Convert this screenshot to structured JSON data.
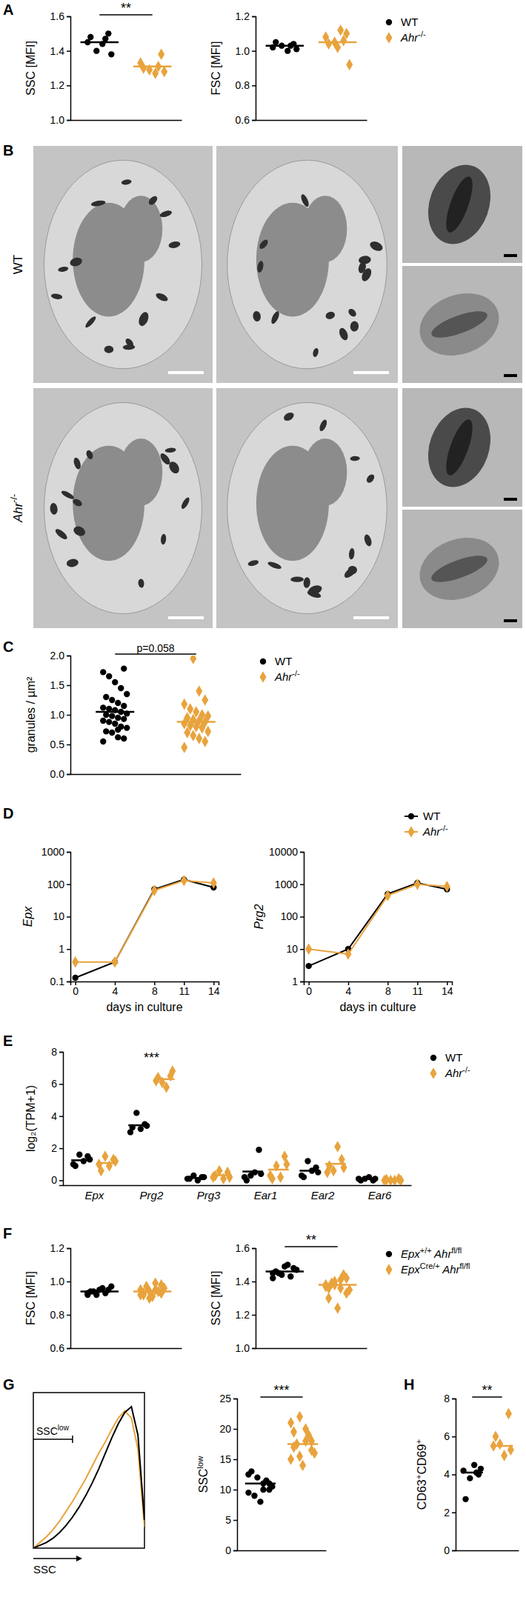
{
  "chart_data": [
    {
      "panel": "A",
      "type": "dot",
      "ylabel": "SSC [MFI]",
      "tick_labels": "y",
      "ylim": [
        1.0,
        1.6
      ],
      "yticks": [
        {
          "value": 1.0,
          "label": "1.0"
        },
        1.2,
        1.4,
        1.6
      ],
      "series": [
        {
          "name": "WT",
          "color": "#000000",
          "marker": "circle",
          "values": [
            1.45,
            1.5,
            1.44,
            1.4,
            1.48,
            1.38,
            1.47
          ],
          "mean": 1.45
        },
        {
          "name": "Ahr-/-",
          "color": "#e8a33d",
          "marker": "diamond",
          "values": [
            1.33,
            1.38,
            1.27,
            1.29,
            1.3,
            1.28,
            1.31
          ],
          "mean": 1.31
        }
      ],
      "annotations": [
        {
          "text": "**"
        }
      ]
    },
    {
      "type": "dot",
      "ylabel": "FSC [MFI]",
      "tick_labels": "y",
      "legend": "right",
      "ylim": [
        0.6,
        1.2
      ],
      "yticks": [
        0.6,
        0.8,
        {
          "value": 1.0,
          "label": "1.0"
        },
        1.2
      ],
      "series": [
        {
          "name": "WT",
          "color": "#000000",
          "marker": "circle",
          "values": [
            1.02,
            1.04,
            1.0,
            1.03,
            1.05,
            1.01,
            1.03
          ],
          "mean": 1.03
        },
        {
          "name": "Ahr-/-",
          "color": "#e8a33d",
          "marker": "diamond",
          "values": [
            1.08,
            1.1,
            1.12,
            1.05,
            1.04,
            0.92,
            1.06,
            1.02
          ],
          "mean": 1.05
        }
      ]
    },
    {
      "panel": "C",
      "type": "dot",
      "ylabel": "granules / µm²",
      "tick_labels": "y",
      "legend": "right",
      "ylim": [
        0.0,
        2.0
      ],
      "yticks": [
        {
          "value": 0.0,
          "label": "0.0"
        },
        0.5,
        {
          "value": 1.0,
          "label": "1.0"
        },
        1.5,
        {
          "value": 2.0,
          "label": "2.0"
        }
      ],
      "series": [
        {
          "name": "WT",
          "color": "#000000",
          "marker": "circle",
          "values": [
            0.55,
            0.6,
            0.62,
            0.7,
            0.72,
            0.78,
            0.8,
            0.85,
            0.88,
            0.9,
            0.93,
            0.95,
            0.98,
            1.0,
            1.02,
            1.05,
            1.08,
            1.1,
            1.12,
            1.15,
            1.2,
            1.25,
            1.3,
            1.35,
            1.45,
            1.55,
            1.65,
            1.72,
            1.78,
            0.75
          ],
          "mean": 1.05
        },
        {
          "name": "Ahr-/-",
          "color": "#e8a33d",
          "marker": "diamond",
          "values": [
            0.45,
            0.55,
            0.6,
            0.65,
            0.7,
            0.72,
            0.78,
            0.8,
            0.82,
            0.85,
            0.88,
            0.9,
            0.92,
            0.95,
            0.98,
            1.0,
            1.05,
            1.1,
            1.18,
            1.25,
            1.4,
            1.95
          ],
          "mean": 0.88
        }
      ],
      "annotations": [
        {
          "text": "p=0.058"
        }
      ]
    },
    {
      "panel": "D",
      "type": "line",
      "log": "y",
      "ylabel": "Epx",
      "xlabel": "days in culture",
      "x": [
        0,
        4,
        8,
        11,
        14
      ],
      "xlim": [
        -0.5,
        14.5
      ],
      "xticks": [
        0,
        4,
        8,
        11,
        14
      ],
      "ylim": [
        0.1,
        1000
      ],
      "yticks": [
        0.1,
        1,
        10,
        100,
        1000
      ],
      "series": [
        {
          "name": "WT",
          "color": "#000000",
          "marker": "circle",
          "values": [
            0.13,
            0.4,
            70,
            140,
            80
          ]
        },
        {
          "name": "Ahr-/-",
          "color": "#e8a33d",
          "marker": "diamond",
          "values": [
            0.4,
            0.4,
            65,
            130,
            110
          ]
        }
      ]
    },
    {
      "type": "line",
      "log": "y",
      "ylabel": "Prg2",
      "xlabel": "days in culture",
      "legend": "top right",
      "x": [
        0,
        4,
        8,
        11,
        14
      ],
      "xlim": [
        -0.5,
        14.5
      ],
      "xticks": [
        0,
        4,
        8,
        11,
        14
      ],
      "ylim": [
        1,
        10000
      ],
      "yticks": [
        1,
        10,
        100,
        1000,
        10000
      ],
      "series": [
        {
          "name": "WT",
          "color": "#000000",
          "marker": "circle",
          "values": [
            3,
            10,
            500,
            1100,
            700
          ]
        },
        {
          "name": "Ahr-/-",
          "color": "#e8a33d",
          "marker": "diamond",
          "values": [
            10,
            7,
            450,
            1000,
            850
          ]
        }
      ]
    },
    {
      "panel": "E",
      "type": "dot",
      "ylabel": "log₂(TPM+1)",
      "legend": "right",
      "categories": [
        "Epx",
        "Prg2",
        "Prg3",
        "Ear1",
        "Ear2",
        "Ear6"
      ],
      "ylim": [
        -0.3,
        8
      ],
      "yticks": [
        0,
        2,
        4,
        6,
        8
      ],
      "series": [
        {
          "name": "WT",
          "color": "#000000",
          "marker": "circle",
          "values": [
            [
              1.0,
              1.5,
              1.2,
              1.6,
              0.9,
              1.3
            ],
            [
              3.0,
              3.5,
              3.2,
              4.2,
              3.3,
              3.4
            ],
            [
              0.1,
              0.2,
              0.0,
              0.3,
              0.1,
              0.2
            ],
            [
              0.2,
              1.9,
              0.5,
              0.3,
              0.0,
              0.4
            ],
            [
              0.3,
              0.8,
              0.6,
              1.2,
              0.2,
              0.5
            ],
            [
              0.1,
              0.0,
              0.2,
              0.1,
              0.0,
              0.1
            ]
          ],
          "mean": [
            1.25,
            3.43,
            0.15,
            0.55,
            0.6,
            0.08
          ]
        },
        {
          "name": "Ahr-/-",
          "color": "#e8a33d",
          "marker": "diamond",
          "values": [
            [
              1.0,
              1.3,
              0.9,
              1.5,
              0.6,
              1.2
            ],
            [
              6.2,
              6.5,
              5.8,
              6.1,
              6.4,
              6.8
            ],
            [
              0.2,
              0.5,
              0.1,
              0.6,
              0.3,
              0.2
            ],
            [
              0.3,
              1.5,
              0.2,
              0.9,
              0.1,
              1.0
            ],
            [
              0.5,
              1.3,
              2.1,
              0.6,
              0.9,
              0.8
            ],
            [
              0.0,
              0.1,
              0.0,
              0.0,
              0.05,
              0.0
            ]
          ],
          "mean": [
            1.08,
            6.3,
            0.32,
            0.67,
            1.03,
            0.03
          ]
        }
      ],
      "annotations": [
        {
          "text": "***",
          "at": "Prg2"
        }
      ]
    },
    {
      "panel": "F",
      "type": "dot",
      "ylabel": "FSC [MFI]",
      "tick_labels": "y",
      "ylim": [
        0.6,
        1.2
      ],
      "yticks": [
        0.6,
        0.8,
        {
          "value": 1.0,
          "label": "1.0"
        },
        1.2
      ],
      "series": [
        {
          "name": "Epx+/+ Ahrfl/fl",
          "color": "#000000",
          "marker": "circle",
          "values": [
            0.93,
            0.95,
            0.96,
            0.92,
            0.94,
            0.97,
            0.93,
            0.95,
            0.94,
            0.92
          ],
          "mean": 0.94
        },
        {
          "name": "EpxCre/+ Ahrfl/fl",
          "color": "#e8a33d",
          "marker": "diamond",
          "values": [
            0.92,
            0.98,
            0.95,
            0.9,
            0.93,
            0.96,
            0.94,
            0.91,
            0.97,
            0.95,
            0.93,
            0.99,
            0.94,
            0.92
          ],
          "mean": 0.94
        }
      ]
    },
    {
      "type": "dot",
      "ylabel": "SSC [MFI]",
      "tick_labels": "y",
      "legend": "right",
      "ylim": [
        1.0,
        1.6
      ],
      "yticks": [
        {
          "value": 1.0,
          "label": "1.0"
        },
        1.2,
        1.4,
        1.6
      ],
      "series": [
        {
          "name": "Epx+/+ Ahrfl/fl",
          "color": "#000000",
          "marker": "circle",
          "values": [
            1.45,
            1.48,
            1.5,
            1.44,
            1.46,
            1.47,
            1.43,
            1.49,
            1.45,
            1.42
          ],
          "mean": 1.46
        },
        {
          "name": "EpxCre/+ Ahrfl/fl",
          "color": "#e8a33d",
          "marker": "diamond",
          "values": [
            1.38,
            1.42,
            1.36,
            1.4,
            1.3,
            1.35,
            1.44,
            1.24,
            1.39,
            1.37,
            1.33,
            1.41,
            1.38,
            1.36
          ],
          "mean": 1.38
        }
      ],
      "annotations": [
        {
          "text": "**"
        }
      ]
    },
    {
      "panel": "G",
      "type": "line",
      "xlabel": "SSC",
      "tick_labels": false,
      "x": [
        0,
        1,
        2,
        3,
        4,
        5,
        6,
        7,
        8,
        9,
        10,
        11,
        12,
        13,
        14,
        15,
        16,
        17
      ],
      "xlim": [
        0,
        17
      ],
      "ylim": [
        0,
        110
      ],
      "series": [
        {
          "color": "#e8a33d",
          "values": [
            0,
            4,
            8,
            13,
            19,
            26,
            33,
            41,
            49,
            58,
            67,
            75,
            84,
            92,
            97,
            92,
            70,
            15
          ]
        },
        {
          "color": "#000000",
          "values": [
            0,
            2,
            4,
            7,
            11,
            16,
            22,
            29,
            37,
            46,
            56,
            67,
            78,
            88,
            96,
            100,
            80,
            20
          ]
        }
      ],
      "annotations": [
        {
          "text": "SSClow",
          "range": [
            0,
            6
          ]
        }
      ]
    },
    {
      "type": "dot",
      "ylabel": "SSClow",
      "tick_labels": "y",
      "ylim": [
        0,
        25
      ],
      "yticks": [
        0,
        5,
        10,
        15,
        20,
        25
      ],
      "series": [
        {
          "color": "#000000",
          "marker": "circle",
          "values": [
            9.5,
            10,
            11,
            12,
            13,
            10.5,
            11.5,
            8,
            9,
            12.5,
            11,
            10
          ],
          "mean": 11
        },
        {
          "color": "#e8a33d",
          "marker": "diamond",
          "values": [
            15,
            18,
            20,
            22,
            17,
            16,
            19,
            14,
            17.5,
            21,
            16.5,
            18,
            15.5,
            19.5
          ],
          "mean": 17.5
        }
      ],
      "annotations": [
        {
          "text": "***"
        }
      ]
    },
    {
      "panel": "H",
      "type": "dot",
      "ylabel": "CD63+CD69+",
      "tick_labels": "y",
      "ylim": [
        0,
        8
      ],
      "yticks": [
        0,
        2,
        4,
        6,
        8
      ],
      "series": [
        {
          "color": "#000000",
          "marker": "circle",
          "values": [
            4.2,
            4.0,
            4.5,
            3.8,
            2.7,
            4.3,
            4.1
          ],
          "mean": 4.1
        },
        {
          "color": "#e8a33d",
          "marker": "diamond",
          "values": [
            5.5,
            7.2,
            5.0,
            5.6,
            6.0,
            5.3
          ],
          "mean": 5.5
        }
      ],
      "annotations": [
        {
          "text": "**"
        }
      ]
    }
  ],
  "micrographs": {
    "panel": "B",
    "row_labels": [
      "WT",
      "Ahr-/-"
    ]
  }
}
